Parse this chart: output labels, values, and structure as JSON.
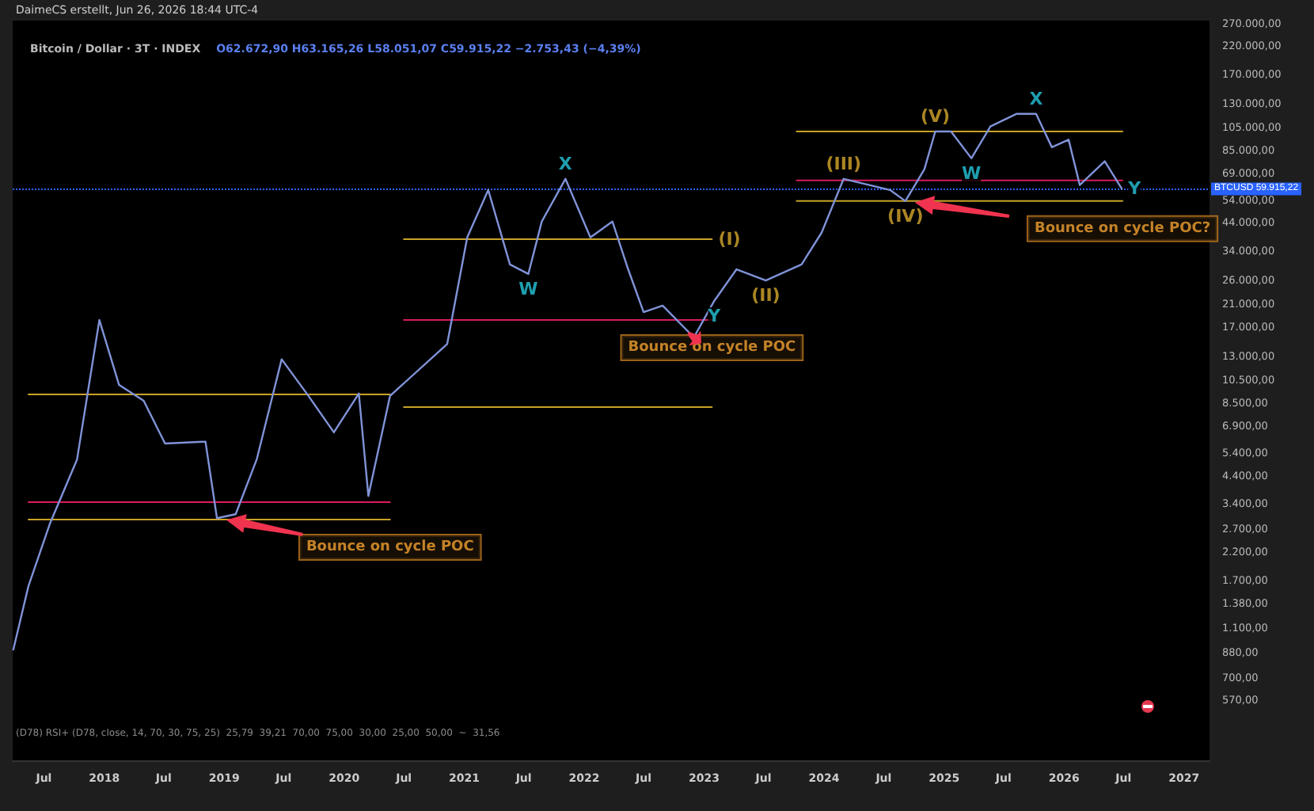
{
  "chart_data": {
    "type": "line",
    "title": "Bitcoin / Dollar · 3T · INDEX",
    "subtitle": "O62.672,90 H63.165,26 L58.051,07 C59.915,22 −2.753,43 (−4,39%)",
    "log": "y",
    "marker": "none",
    "line_style": "solid",
    "xlim": [
      "2017-03-28",
      "2027-03-20"
    ],
    "xticks": [
      {
        "value": "2017-07-01",
        "label": "Jul"
      },
      {
        "value": "2018-01-01",
        "label": "2018"
      },
      {
        "value": "2018-07-01",
        "label": "Jul"
      },
      {
        "value": "2019-01-01",
        "label": "2019"
      },
      {
        "value": "2019-07-01",
        "label": "Jul"
      },
      {
        "value": "2020-01-01",
        "label": "2020"
      },
      {
        "value": "2020-07-01",
        "label": "Jul"
      },
      {
        "value": "2021-01-01",
        "label": "2021"
      },
      {
        "value": "2021-07-01",
        "label": "Jul"
      },
      {
        "value": "2022-01-01",
        "label": "2022"
      },
      {
        "value": "2022-07-01",
        "label": "Jul"
      },
      {
        "value": "2023-01-01",
        "label": "2023"
      },
      {
        "value": "2023-07-01",
        "label": "Jul"
      },
      {
        "value": "2024-01-01",
        "label": "2024"
      },
      {
        "value": "2024-07-01",
        "label": "Jul"
      },
      {
        "value": "2025-01-01",
        "label": "2025"
      },
      {
        "value": "2025-07-01",
        "label": "Jul"
      },
      {
        "value": "2026-01-01",
        "label": "2026"
      },
      {
        "value": "2026-07-01",
        "label": "Jul"
      },
      {
        "value": "2027-01-01",
        "label": "2027"
      }
    ],
    "ylim": [
      330,
      277000
    ],
    "yticks": [
      {
        "value": 570,
        "label": "570,00"
      },
      {
        "value": 700,
        "label": "700,00"
      },
      {
        "value": 880,
        "label": "880,00"
      },
      {
        "value": 1100,
        "label": "1.100,00"
      },
      {
        "value": 1380,
        "label": "1.380,00"
      },
      {
        "value": 1700,
        "label": "1.700,00"
      },
      {
        "value": 2200,
        "label": "2.200,00"
      },
      {
        "value": 2700,
        "label": "2.700,00"
      },
      {
        "value": 3400,
        "label": "3.400,00"
      },
      {
        "value": 4400,
        "label": "4.400,00"
      },
      {
        "value": 5400,
        "label": "5.400,00"
      },
      {
        "value": 6900,
        "label": "6.900,00"
      },
      {
        "value": 8500,
        "label": "8.500,00"
      },
      {
        "value": 10500,
        "label": "10.500,00"
      },
      {
        "value": 13000,
        "label": "13.000,00"
      },
      {
        "value": 17000,
        "label": "17.000,00"
      },
      {
        "value": 21000,
        "label": "21.000,00"
      },
      {
        "value": 26000,
        "label": "26.000,00"
      },
      {
        "value": 34000,
        "label": "34.000,00"
      },
      {
        "value": 44000,
        "label": "44.000,00"
      },
      {
        "value": 54000,
        "label": "54.000,00"
      },
      {
        "value": 69000,
        "label": "69.000,00"
      },
      {
        "value": 85000,
        "label": "85.000,00"
      },
      {
        "value": 105000,
        "label": "105.000,00"
      },
      {
        "value": 130000,
        "label": "130.000,00"
      },
      {
        "value": 170000,
        "label": "170.000,00"
      },
      {
        "value": 220000,
        "label": "220.000,00"
      },
      {
        "value": 270000,
        "label": "270.000,00"
      }
    ],
    "ref_lines": [
      {
        "axis": "y",
        "value": 59915.22,
        "label": "BTCUSD 59.915,22",
        "color": "#2962ff",
        "line_style": "dotted"
      }
    ],
    "series": [
      {
        "color": "#8093d8",
        "x": [
          "2017-03-30",
          "2017-05-15",
          "2017-07-20",
          "2017-10-10",
          "2017-12-17",
          "2018-02-15",
          "2018-05-01",
          "2018-07-05",
          "2018-11-05",
          "2018-12-10",
          "2019-02-05",
          "2019-04-10",
          "2019-06-25",
          "2019-09-15",
          "2019-12-01",
          "2020-02-15",
          "2020-03-15",
          "2020-05-20",
          "2020-11-10",
          "2021-01-10",
          "2021-03-15",
          "2021-05-20",
          "2021-07-15",
          "2021-08-25",
          "2021-11-05",
          "2022-01-20",
          "2022-03-28",
          "2022-05-15",
          "2022-07-01",
          "2022-08-28",
          "2022-12-01",
          "2023-02-01",
          "2023-04-10",
          "2023-07-08",
          "2023-10-25",
          "2023-12-25",
          "2024-03-01",
          "2024-07-20",
          "2024-09-05",
          "2024-11-02",
          "2024-12-05",
          "2025-01-22",
          "2025-03-25",
          "2025-05-22",
          "2025-08-10",
          "2025-10-08",
          "2025-11-25",
          "2026-01-15",
          "2026-02-18",
          "2026-05-05",
          "2026-06-26"
        ],
        "values": [
          904,
          1610,
          2860,
          5100,
          18150,
          10050,
          8700,
          5900,
          6000,
          2990,
          3100,
          5100,
          12700,
          9080,
          6530,
          9300,
          3660,
          9100,
          14600,
          38500,
          59300,
          30100,
          27600,
          44500,
          65600,
          38500,
          44500,
          28800,
          19500,
          20700,
          15500,
          21600,
          28800,
          26000,
          30100,
          40200,
          65600,
          59300,
          53600,
          71600,
          101000,
          101000,
          79100,
          105700,
          118600,
          118600,
          87500,
          93700,
          62000,
          77000,
          59915
        ]
      },
      {
        "color": "#c9a227",
        "x": [
          "2017-05-15",
          "2020-05-20"
        ],
        "values": [
          9230,
          9230
        ]
      },
      {
        "color": "#d81b60",
        "x": [
          "2017-05-15",
          "2020-05-20"
        ],
        "values": [
          3460,
          3460
        ]
      },
      {
        "color": "#c9a227",
        "x": [
          "2017-05-15",
          "2020-05-20"
        ],
        "values": [
          2950,
          2950
        ]
      },
      {
        "color": "#c9a227",
        "x": [
          "2020-07-01",
          "2023-01-25"
        ],
        "values": [
          37900,
          37900
        ]
      },
      {
        "color": "#d81b60",
        "x": [
          "2020-07-01",
          "2023-01-25"
        ],
        "values": [
          18150,
          18150
        ]
      },
      {
        "color": "#c9a227",
        "x": [
          "2020-07-01",
          "2023-01-25"
        ],
        "values": [
          8220,
          8220
        ]
      },
      {
        "color": "#c9a227",
        "x": [
          "2023-10-10",
          "2026-06-28"
        ],
        "values": [
          101000,
          101000
        ]
      },
      {
        "color": "#d81b60",
        "x": [
          "2023-10-10",
          "2026-06-28"
        ],
        "values": [
          64700,
          64700
        ]
      },
      {
        "color": "#c9a227",
        "x": [
          "2023-10-10",
          "2026-06-28"
        ],
        "values": [
          53600,
          53600
        ]
      }
    ],
    "annotations": [
      "DaimeCS erstellt, Jun 26, 2026 18:44 UTC-4",
      "(D78) RSI+ (D78, close, 14, 70, 30, 75, 25)  25,79  39,21  70,00  75,00  30,00  25,00  50,00  ~  31,56",
      {
        "text": "X",
        "x": "2021-11-05",
        "y": 65600
      },
      {
        "text": "W",
        "x": "2021-07-15",
        "y": 27600
      },
      {
        "text": "(I)",
        "x": "2023-01-25",
        "y": 37900
      },
      {
        "text": "(II)",
        "x": "2023-07-08",
        "y": 26000
      },
      {
        "text": "Y",
        "x": "2023-02-01",
        "y": 21600
      },
      {
        "text": "(III)",
        "x": "2024-03-01",
        "y": 65600
      },
      {
        "text": "(V)",
        "x": "2024-12-05",
        "y": 101000
      },
      {
        "text": "(IV)",
        "x": "2024-09-05",
        "y": 53600
      },
      {
        "text": "W",
        "x": "2025-03-25",
        "y": 79100
      },
      {
        "text": "X",
        "x": "2025-10-08",
        "y": 118600
      },
      {
        "text": "Y",
        "x": "2026-06-26",
        "y": 59915
      },
      {
        "text": "Bounce on cycle POC",
        "x": "2020-05-20",
        "y": 2950
      },
      {
        "text": "Bounce on cycle POC",
        "x": "2023-01-25",
        "y": 18150
      },
      {
        "text": "Bounce on cycle POC?",
        "x": "2026-06-28",
        "y": 53600
      }
    ]
  }
}
